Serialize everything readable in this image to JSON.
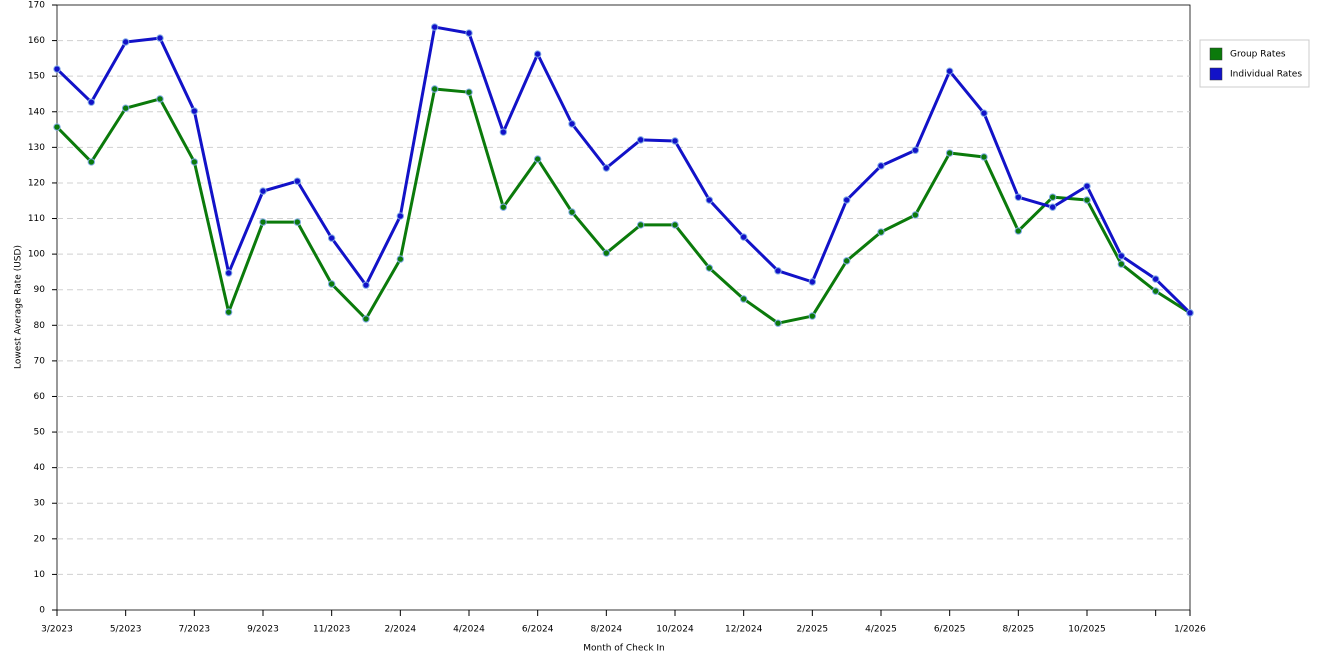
{
  "chart_data": {
    "type": "line",
    "x_label": "Month of Check In",
    "y_label": "Lowest Average Rate (USD)",
    "categories": [
      "3/2023",
      null,
      "5/2023",
      null,
      "7/2023",
      null,
      "9/2023",
      null,
      "11/2023",
      null,
      "2/2024",
      null,
      "4/2024",
      null,
      "6/2024",
      null,
      "8/2024",
      null,
      "10/2024",
      null,
      "12/2024",
      null,
      "2/2025",
      null,
      "4/2025",
      null,
      "6/2025",
      null,
      "8/2025",
      null,
      "10/2025",
      null,
      null,
      "1/2026"
    ],
    "series": [
      {
        "name": "Group Rates",
        "color": "#0b7a0b",
        "values": [
          135.7,
          125.9,
          141,
          143.6,
          125.9,
          83.7,
          109,
          109,
          91.6,
          81.8,
          98.6,
          146.4,
          145.5,
          113.2,
          126.7,
          111.8,
          100.3,
          108.2,
          108.2,
          96.1,
          87.4,
          80.6,
          82.6,
          98.1,
          106.2,
          111,
          128.4,
          127.3,
          106.5,
          116,
          115.2,
          97.2,
          89.6,
          83.5
        ]
      },
      {
        "name": "Individual Rates",
        "color": "#1212c8",
        "values": [
          152,
          142.7,
          159.6,
          160.7,
          140.2,
          94.7,
          117.7,
          120.5,
          104.5,
          91.3,
          110.7,
          163.8,
          162.1,
          134.3,
          156.2,
          136.6,
          124.2,
          132.1,
          131.8,
          115.2,
          104.8,
          95.3,
          92.2,
          115.2,
          124.8,
          129.2,
          151.4,
          139.6,
          116,
          113.2,
          119.1,
          99.5,
          93,
          83.5
        ]
      }
    ],
    "ylim": [
      0,
      170
    ],
    "yticks": [
      0,
      10,
      20,
      30,
      40,
      50,
      60,
      70,
      80,
      90,
      100,
      110,
      120,
      130,
      140,
      150,
      160,
      170
    ],
    "grid": true,
    "legend": "right"
  }
}
